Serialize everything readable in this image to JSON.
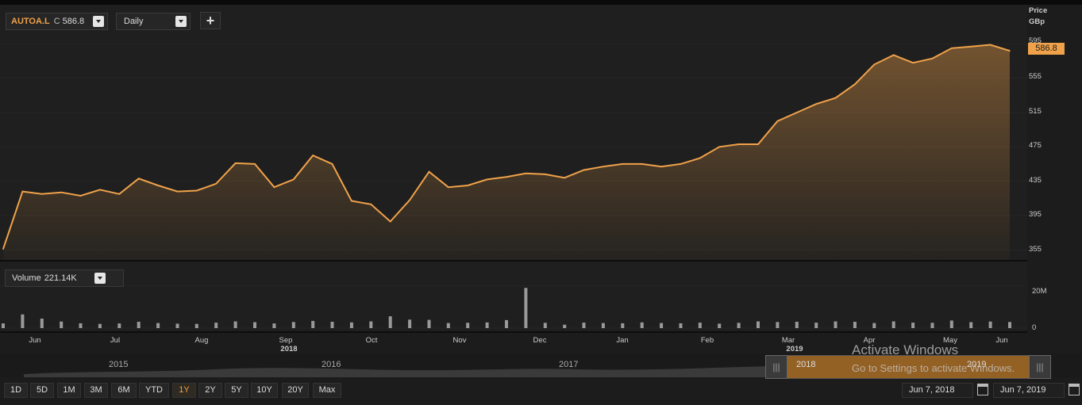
{
  "toolbar": {
    "ticker": "AUTOA.L",
    "close_label": "C",
    "close_value": "586.8",
    "interval": "Daily",
    "add_label": "+"
  },
  "price_axis": {
    "title_line1": "Price",
    "title_line2": "GBp",
    "ticks": [
      "595",
      "555",
      "515",
      "475",
      "435",
      "395",
      "355"
    ],
    "current": "586.8"
  },
  "volume": {
    "label": "Volume",
    "value": "221.14K",
    "ticks": [
      "20M",
      "0"
    ]
  },
  "time_axis": {
    "months": [
      "Jun",
      "Jul",
      "Aug",
      "Sep",
      "Oct",
      "Nov",
      "Dec",
      "Jan",
      "Feb",
      "Mar",
      "Apr",
      "May",
      "Jun"
    ],
    "years": [
      "2018",
      "2019"
    ]
  },
  "navigator": {
    "years": [
      "2015",
      "2016",
      "2017",
      "2018",
      "2019"
    ]
  },
  "ranges": [
    "1D",
    "5D",
    "1M",
    "3M",
    "6M",
    "YTD",
    "1Y",
    "2Y",
    "5Y",
    "10Y",
    "20Y",
    "Max"
  ],
  "active_range": "1Y",
  "dates": {
    "start": "Jun 7, 2018",
    "end": "Jun 7, 2019"
  },
  "watermark": {
    "line1": "Activate Windows",
    "line2": "Go to Settings to activate Windows."
  },
  "colors": {
    "line": "#f0a24a",
    "background": "#1f1f1f",
    "volume_bars": "#9a9a9a"
  },
  "chart_data": [
    {
      "type": "area",
      "ylabel": "Price GBp",
      "ylim": [
        345,
        600
      ],
      "x": [
        "2018-06-07",
        "2018-06-14",
        "2018-06-21",
        "2018-06-28",
        "2018-07-05",
        "2018-07-12",
        "2018-07-19",
        "2018-07-26",
        "2018-08-02",
        "2018-08-09",
        "2018-08-16",
        "2018-08-23",
        "2018-08-30",
        "2018-09-06",
        "2018-09-13",
        "2018-09-20",
        "2018-09-27",
        "2018-10-04",
        "2018-10-11",
        "2018-10-18",
        "2018-10-25",
        "2018-11-01",
        "2018-11-08",
        "2018-11-15",
        "2018-11-22",
        "2018-11-29",
        "2018-12-06",
        "2018-12-13",
        "2018-12-20",
        "2018-12-27",
        "2019-01-03",
        "2019-01-10",
        "2019-01-17",
        "2019-01-24",
        "2019-01-31",
        "2019-02-07",
        "2019-02-14",
        "2019-02-21",
        "2019-02-28",
        "2019-03-07",
        "2019-03-14",
        "2019-03-21",
        "2019-03-28",
        "2019-04-04",
        "2019-04-11",
        "2019-04-18",
        "2019-04-25",
        "2019-05-02",
        "2019-05-09",
        "2019-05-16",
        "2019-05-23",
        "2019-05-30",
        "2019-06-07"
      ],
      "series": [
        {
          "values": [
            356,
            423,
            420,
            422,
            418,
            425,
            420,
            438,
            430,
            423,
            424,
            432,
            456,
            455,
            428,
            437,
            465,
            455,
            412,
            408,
            388,
            413,
            446,
            428,
            430,
            437,
            440,
            444,
            443,
            439,
            448,
            452,
            455,
            455,
            452,
            455,
            462,
            475,
            478,
            478,
            505,
            515,
            525,
            532,
            548,
            571,
            582,
            573,
            578,
            590,
            592,
            594,
            587
          ]
        }
      ]
    },
    {
      "type": "bar",
      "ylabel": "Volume",
      "ylim": [
        0,
        24
      ],
      "note_units": "M shares",
      "values": [
        2.2,
        6.5,
        4.5,
        3.1,
        2.3,
        2.0,
        2.2,
        3.0,
        2.4,
        2.1,
        2.0,
        2.6,
        3.2,
        2.8,
        2.2,
        2.9,
        3.4,
        3.0,
        2.7,
        3.2,
        5.6,
        4.0,
        3.9,
        2.4,
        2.5,
        2.7,
        3.8,
        19.0,
        2.5,
        1.6,
        2.6,
        2.4,
        2.3,
        2.7,
        2.4,
        2.3,
        2.6,
        2.1,
        2.5,
        3.2,
        2.9,
        3.0,
        2.6,
        3.2,
        3.0,
        2.4,
        3.2,
        2.6,
        2.5,
        3.6,
        2.8,
        3.1,
        2.9
      ]
    }
  ]
}
